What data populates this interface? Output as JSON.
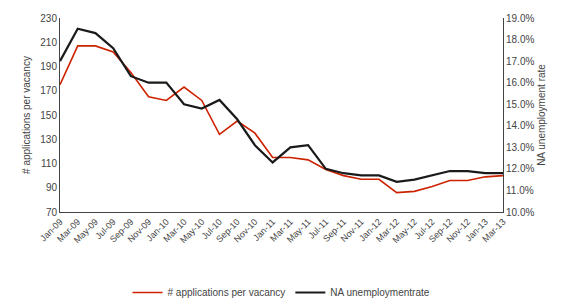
{
  "chart_data": {
    "type": "line",
    "categories": [
      "Jan-09",
      "Mar-09",
      "May-09",
      "Jul-09",
      "Sep-09",
      "Nov-09",
      "Jan-10",
      "Mar-10",
      "May-10",
      "Jul-10",
      "Sep-10",
      "Nov-10",
      "Jan-11",
      "Mar-11",
      "May-11",
      "Jul-11",
      "Sep-11",
      "Nov-11",
      "Jan-12",
      "Mar-12",
      "May-12",
      "Jul-12",
      "Sep-12",
      "Nov-12",
      "Jan-13",
      "Mar-13"
    ],
    "series": [
      {
        "name": "# applications per vacancy",
        "color": "#cc2200",
        "values": [
          175,
          207,
          207,
          202,
          185,
          165,
          162,
          173,
          162,
          134,
          145,
          135,
          115,
          115,
          113,
          105,
          100,
          97,
          97,
          86,
          87,
          91,
          96,
          96,
          99,
          100
        ]
      },
      {
        "name": "NA unemploymentrate",
        "color": "#1a1a1a",
        "axis": "y2",
        "values": [
          17.0,
          18.5,
          18.3,
          17.6,
          16.3,
          16.0,
          16.0,
          15.0,
          14.8,
          15.2,
          14.3,
          13.1,
          12.3,
          13.0,
          13.1,
          12.0,
          11.8,
          11.7,
          11.7,
          11.4,
          11.5,
          11.7,
          11.9,
          11.9,
          11.8,
          11.8
        ]
      }
    ],
    "ylabel": "# applications per vacancy",
    "y2label": "NA unemployment rate",
    "ylim": [
      70,
      230
    ],
    "yticks": [
      70,
      90,
      110,
      130,
      150,
      170,
      190,
      210,
      230
    ],
    "y2lim": [
      10.0,
      19.0
    ],
    "y2ticks": [
      {
        "value": 10.0,
        "label": "10.0%"
      },
      {
        "value": 11.0,
        "label": "11.0%"
      },
      {
        "value": 12.0,
        "label": "12.0%"
      },
      {
        "value": 13.0,
        "label": "13.0%"
      },
      {
        "value": 14.0,
        "label": "14.0%"
      },
      {
        "value": 15.0,
        "label": "15.0%"
      },
      {
        "value": 16.0,
        "label": "16.0%"
      },
      {
        "value": 17.0,
        "label": "17.0%"
      },
      {
        "value": 18.0,
        "label": "18.0%"
      },
      {
        "value": 19.0,
        "label": "19.0%"
      }
    ],
    "grid": false,
    "legend": "bottom"
  }
}
